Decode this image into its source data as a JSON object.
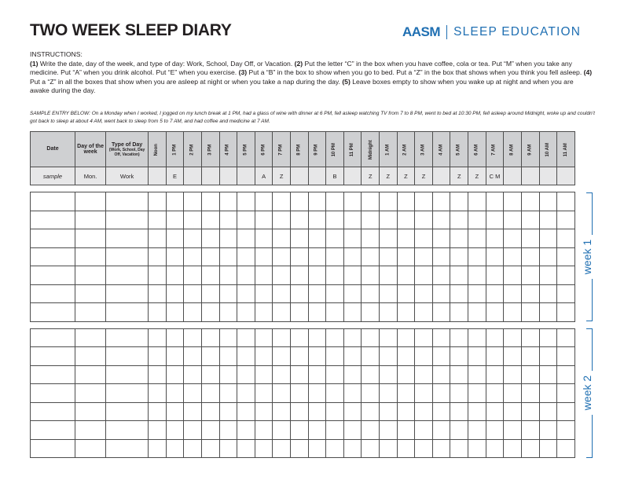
{
  "title": "TWO WEEK SLEEP DIARY",
  "logo": {
    "mark": "AASM",
    "text": "SLEEP EDUCATION",
    "color": "#1f6fb2"
  },
  "instructions": {
    "heading": "INSTRUCTIONS:",
    "n1": "(1)",
    "t1": " Write the date, day of the week, and type of day: Work, School, Day Off, or Vacation. ",
    "n2": "(2)",
    "t2": " Put the letter “C” in the box when you have coffee, cola or tea. Put “M” when you take any medicine. Put “A” when you drink alcohol. Put “E” when you exercise. ",
    "n3": "(3)",
    "t3": " Put a “B” in the box to show when you go to bed. Put a “Z” in the box that shows when you think you fell asleep. ",
    "n4": "(4)",
    "t4": " Put a “Z” in all the boxes that show when you are asleep at night or when you take a nap during the day. ",
    "n5": "(5)",
    "t5": " Leave boxes empty to show when you wake up at night and when you are awake during the day."
  },
  "sample_note": "SAMPLE ENTRY BELOW:  On a Monday when I worked, I jogged on my lunch break at 1 PM, had a glass of wine with dinner at 6 PM, fell asleep watching TV from 7 to 8 PM, went to bed at 10:30 PM, fell asleep around Midnight, woke up and couldn’t got back to sleep at about 4 AM, went back to sleep from 5 to 7 AM, and had coffee and medicine at 7 AM.",
  "headers": {
    "date": "Date",
    "dow": "Day of the week",
    "type_main": "Type of Day",
    "type_sub": "(Work, School, Day Off, Vacation)",
    "hours": [
      "Noon",
      "1 PM",
      "2 PM",
      "3 PM",
      "4 PM",
      "5 PM",
      "6 PM",
      "7 PM",
      "8 PM",
      "9 PM",
      "10 PM",
      "11 PM",
      "Midnight",
      "1 AM",
      "2 AM",
      "3 AM",
      "4 AM",
      "5 AM",
      "6 AM",
      "7 AM",
      "8 AM",
      "9 AM",
      "10 AM",
      "11 AM"
    ]
  },
  "sample_row": {
    "date": "sample",
    "dow": "Mon.",
    "type": "Work",
    "cells": [
      "",
      "E",
      "",
      "",
      "",
      "",
      "A",
      "Z",
      "",
      "",
      "B",
      "",
      "Z",
      "Z",
      "Z",
      "Z",
      "",
      "Z",
      "Z",
      "C M",
      "",
      "",
      "",
      ""
    ]
  },
  "weeks": [
    {
      "label": "week 1",
      "rows": 7
    },
    {
      "label": "week 2",
      "rows": 7
    }
  ]
}
